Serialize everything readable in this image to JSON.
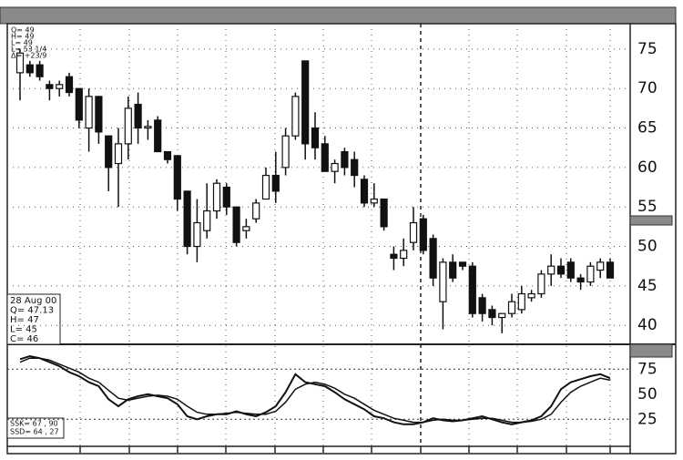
{
  "chart_data": [
    {
      "type": "candlestick",
      "annotations": [
        "Q= 49",
        "H= 49",
        "L= 49",
        "L= 53 1/4",
        "Δ= +23/9"
      ],
      "info": [
        "28 Aug 00",
        "Q= 47.13",
        "H= 47",
        "L= 45",
        "C= 46"
      ],
      "open": [
        72,
        73,
        73,
        70.5,
        70,
        71.5,
        70,
        65,
        69,
        64,
        60.5,
        63,
        68,
        65,
        66,
        62,
        61.5,
        57,
        50,
        52,
        54.5,
        57.5,
        55,
        52,
        53.5,
        56,
        59,
        60,
        64,
        73.5,
        65,
        63,
        59.5,
        62,
        61,
        58.5,
        55.5,
        56,
        49,
        48.5,
        50.5,
        53.5,
        51,
        43,
        48,
        48,
        47.5,
        43.5,
        42,
        41,
        41.5,
        42,
        43.5,
        44,
        46.5,
        47.5,
        48,
        46,
        45.5,
        47,
        48
      ],
      "high": [
        75,
        73.5,
        73.5,
        71,
        71,
        72,
        70,
        70,
        69,
        64,
        65,
        69,
        69.5,
        66,
        66.5,
        62,
        61.5,
        57,
        56,
        58,
        58.5,
        58,
        55,
        53.5,
        56,
        60,
        62,
        65,
        69.5,
        73.5,
        67,
        64,
        61,
        62.5,
        62,
        59,
        58,
        56,
        50,
        51,
        55,
        54,
        51.5,
        48.5,
        49,
        48,
        48,
        44,
        42.5,
        41.5,
        44,
        45,
        44.5,
        47,
        49,
        48.5,
        48.5,
        46.5,
        48,
        48.5,
        48.5
      ],
      "low": [
        68.5,
        71.5,
        71,
        68.5,
        69,
        69,
        65,
        62,
        63,
        57,
        55,
        61,
        63,
        63.5,
        62,
        60.5,
        54.5,
        49,
        48,
        51,
        53.5,
        54,
        50,
        51,
        53,
        56,
        55.5,
        59,
        63.5,
        61,
        61,
        59.5,
        58,
        59,
        57.5,
        55,
        55,
        52,
        47,
        47.5,
        49.5,
        49,
        45,
        39.5,
        45.5,
        47,
        41,
        40.5,
        40,
        39,
        41,
        41.5,
        43,
        43.5,
        45,
        46,
        45.5,
        44.5,
        45,
        46,
        46
      ],
      "close": [
        74.5,
        72,
        71.5,
        70,
        70.5,
        69.5,
        66,
        69,
        64.5,
        60,
        63,
        67.5,
        65,
        65.2,
        62,
        61,
        56,
        50,
        53,
        54.5,
        58,
        55,
        50.5,
        52.5,
        55.5,
        59,
        57,
        64,
        69,
        63,
        62.5,
        59.5,
        60.5,
        60,
        59,
        55.5,
        56,
        52.5,
        48.5,
        49.5,
        53,
        49.5,
        46,
        48,
        46,
        47.5,
        41.5,
        41.5,
        41,
        41.5,
        43,
        44,
        44,
        46.5,
        47.5,
        46.5,
        46,
        45.5,
        47.5,
        48,
        46
      ],
      "ylim": [
        37.6,
        78.1
      ],
      "yticks": [
        40,
        45,
        50,
        55,
        60,
        65,
        70,
        75
      ],
      "grid": true
    },
    {
      "type": "line",
      "annotations": [
        "SSK= 67 , 90",
        "SSD= 64 , 27"
      ],
      "series": [
        {
          "name": "SSK",
          "color": "#111111",
          "values": [
            85,
            88,
            86,
            82,
            78,
            72,
            68,
            62,
            58,
            45,
            38,
            45,
            48,
            50,
            48,
            46,
            40,
            28,
            25,
            28,
            30,
            30,
            33,
            30,
            28,
            32,
            38,
            52,
            70,
            62,
            60,
            58,
            52,
            45,
            40,
            35,
            28,
            26,
            22,
            20,
            20,
            22,
            26,
            24,
            23,
            24,
            26,
            28,
            25,
            22,
            20,
            22,
            24,
            28,
            38,
            55,
            62,
            65,
            68,
            70,
            66
          ]
        },
        {
          "name": "SSD",
          "color": "#111111",
          "values": [
            82,
            86,
            86,
            84,
            80,
            76,
            72,
            66,
            62,
            54,
            46,
            44,
            46,
            48,
            49,
            48,
            45,
            38,
            32,
            30,
            30,
            31,
            32,
            31,
            30,
            30,
            33,
            42,
            55,
            60,
            62,
            60,
            56,
            50,
            46,
            40,
            34,
            30,
            26,
            24,
            22,
            22,
            24,
            25,
            24,
            24,
            25,
            26,
            26,
            24,
            22,
            22,
            23,
            25,
            30,
            42,
            52,
            58,
            62,
            66,
            64
          ]
        }
      ],
      "ylim": [
        -2,
        98
      ],
      "yticks": [
        25,
        50,
        75
      ],
      "levels": [
        25,
        75
      ]
    }
  ]
}
